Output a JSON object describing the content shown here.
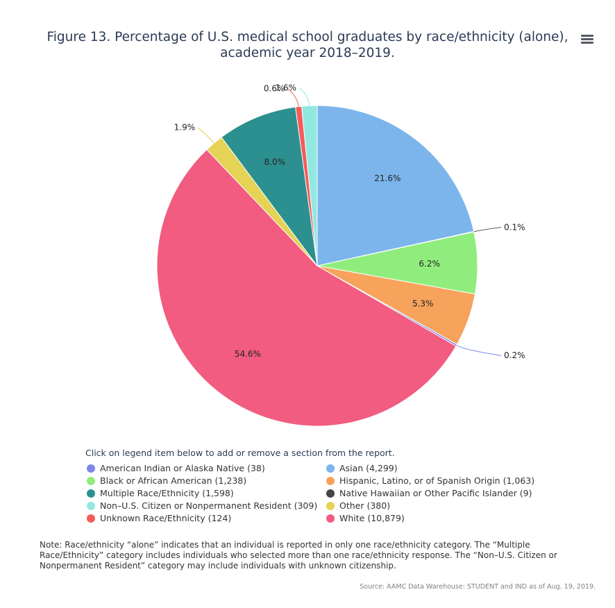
{
  "title_line1": "Figure 13. Percentage of U.S. medical school graduates by race/ethnicity (alone),",
  "title_line2": "academic year 2018–2019.",
  "legend_caption": "Click on legend item below to add or remove a section from the report.",
  "note": "Note: Race/ethnicity “alone” indicates that an individual is reported in only one race/ethnicity category. The “Multiple Race/Ethnicity” category includes individuals who selected more than one race/ethnicity response. The “Non–U.S. Citizen or Nonpermanent Resident” category may include individuals with unknown citizenship.",
  "source": "Source: AAMC Data Warehouse: STUDENT and IND as of Aug. 19, 2019.",
  "legend": [
    {
      "label": "American Indian or Alaska Native (38)",
      "color": "#8085e9"
    },
    {
      "label": "Asian (4,299)",
      "color": "#7cb5ec"
    },
    {
      "label": "Black or African American (1,238)",
      "color": "#90ed7d"
    },
    {
      "label": "Hispanic, Latino, or of Spanish Origin (1,063)",
      "color": "#f7a35c"
    },
    {
      "label": "Multiple Race/Ethnicity (1,598)",
      "color": "#2b908f"
    },
    {
      "label": "Native Hawaiian or Other Pacific Islander (9)",
      "color": "#434348"
    },
    {
      "label": "Non–U.S. Citizen or Nonpermanent Resident (309)",
      "color": "#91e8e1"
    },
    {
      "label": "Other (380)",
      "color": "#e4d354"
    },
    {
      "label": "Unknown Race/Ethnicity (124)",
      "color": "#f45b5b"
    },
    {
      "label": "White (10,879)",
      "color": "#f15c80"
    }
  ],
  "chart_data": {
    "type": "pie",
    "title": "Figure 13. Percentage of U.S. medical school graduates by race/ethnicity (alone), academic year 2018–2019.",
    "start_angle_deg": 0,
    "slices": [
      {
        "name": "Asian",
        "count": 4299,
        "label": "21.6%",
        "color": "#7cb5ec",
        "label_inside": true
      },
      {
        "name": "Native Hawaiian or Other Pacific Islander",
        "count": 9,
        "label": "0.1%",
        "color": "#434348",
        "label_inside": false
      },
      {
        "name": "Black or African American",
        "count": 1238,
        "label": "6.2%",
        "color": "#90ed7d",
        "label_inside": true
      },
      {
        "name": "Hispanic, Latino, or of Spanish Origin",
        "count": 1063,
        "label": "5.3%",
        "color": "#f7a35c",
        "label_inside": true
      },
      {
        "name": "American Indian or Alaska Native",
        "count": 38,
        "label": "0.2%",
        "color": "#8085e9",
        "label_inside": false
      },
      {
        "name": "White",
        "count": 10879,
        "label": "54.6%",
        "color": "#f15c80",
        "label_inside": true
      },
      {
        "name": "Other",
        "count": 380,
        "label": "1.9%",
        "color": "#e4d354",
        "label_inside": false
      },
      {
        "name": "Multiple Race/Ethnicity",
        "count": 1598,
        "label": "8.0%",
        "color": "#2b908f",
        "label_inside": true
      },
      {
        "name": "Unknown Race/Ethnicity",
        "count": 124,
        "label": "0.6%",
        "color": "#f45b5b",
        "label_inside": false
      },
      {
        "name": "Non–U.S. Citizen or Nonpermanent Resident",
        "count": 309,
        "label": "1.6%",
        "color": "#91e8e1",
        "label_inside": false
      }
    ]
  }
}
